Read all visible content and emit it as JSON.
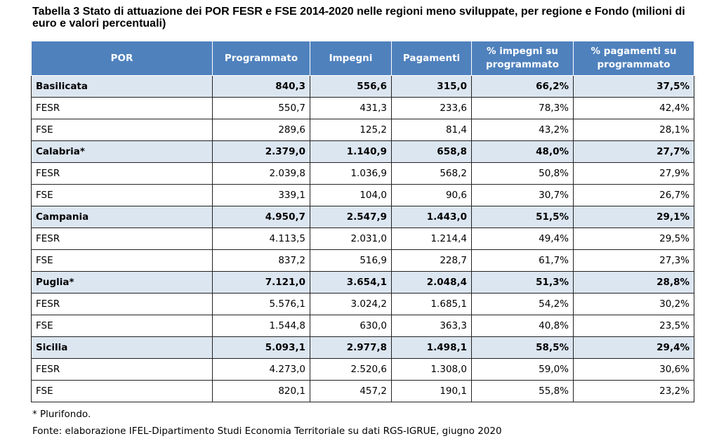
{
  "title": "Tabella 3 Stato di attuazione dei POR FESR e FSE 2014-2020 nelle regioni meno sviluppate, per regione e Fondo (milioni di euro e valori percentuali)",
  "table": {
    "headers": [
      "POR",
      "Programmato",
      "Impegni",
      "Pagamenti",
      "% impegni su programmato",
      "% pagamenti su programmato"
    ],
    "rows": [
      {
        "type": "region",
        "cells": [
          "Basilicata",
          "840,3",
          "556,6",
          "315,0",
          "66,2%",
          "37,5%"
        ]
      },
      {
        "type": "fund",
        "cells": [
          "FESR",
          "550,7",
          "431,3",
          "233,6",
          "78,3%",
          "42,4%"
        ]
      },
      {
        "type": "fund",
        "cells": [
          "FSE",
          "289,6",
          "125,2",
          "81,4",
          "43,2%",
          "28,1%"
        ]
      },
      {
        "type": "region",
        "cells": [
          "Calabria*",
          "2.379,0",
          "1.140,9",
          "658,8",
          "48,0%",
          "27,7%"
        ]
      },
      {
        "type": "fund",
        "cells": [
          "FESR",
          "2.039,8",
          "1.036,9",
          "568,2",
          "50,8%",
          "27,9%"
        ]
      },
      {
        "type": "fund",
        "cells": [
          "FSE",
          "339,1",
          "104,0",
          "90,6",
          "30,7%",
          "26,7%"
        ]
      },
      {
        "type": "region",
        "cells": [
          "Campania",
          "4.950,7",
          "2.547,9",
          "1.443,0",
          "51,5%",
          "29,1%"
        ]
      },
      {
        "type": "fund",
        "cells": [
          "FESR",
          "4.113,5",
          "2.031,0",
          "1.214,4",
          "49,4%",
          "29,5%"
        ]
      },
      {
        "type": "fund",
        "cells": [
          "FSE",
          "837,2",
          "516,9",
          "228,7",
          "61,7%",
          "27,3%"
        ]
      },
      {
        "type": "region",
        "cells": [
          "Puglia*",
          "7.121,0",
          "3.654,1",
          "2.048,4",
          "51,3%",
          "28,8%"
        ]
      },
      {
        "type": "fund",
        "cells": [
          "FESR",
          "5.576,1",
          "3.024,2",
          "1.685,1",
          "54,2%",
          "30,2%"
        ]
      },
      {
        "type": "fund",
        "cells": [
          "FSE",
          "1.544,8",
          "630,0",
          "363,3",
          "40,8%",
          "23,5%"
        ]
      },
      {
        "type": "region",
        "cells": [
          "Sicilia",
          "5.093,1",
          "2.977,8",
          "1.498,1",
          "58,5%",
          "29,4%"
        ]
      },
      {
        "type": "fund",
        "cells": [
          "FESR",
          "4.273,0",
          "2.520,6",
          "1.308,0",
          "59,0%",
          "30,6%"
        ]
      },
      {
        "type": "fund",
        "cells": [
          "FSE",
          "820,1",
          "457,2",
          "190,1",
          "55,8%",
          "23,2%"
        ]
      }
    ]
  },
  "notes": {
    "footnote": "* Plurifondo.",
    "source": "Fonte: elaborazione IFEL-Dipartimento Studi Economia Territoriale su dati RGS-IGRUE, giugno 2020"
  },
  "colors": {
    "header_bg": "#4f81bd",
    "region_row_bg": "#dce6f1"
  }
}
